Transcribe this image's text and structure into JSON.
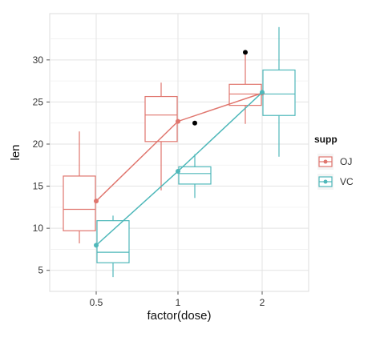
{
  "chart_data": {
    "type": "boxplot",
    "xlabel": "factor(dose)",
    "ylabel": "len",
    "categories": [
      "0.5",
      "1",
      "2"
    ],
    "ylim": [
      2.5,
      35.5
    ],
    "yticks": [
      5,
      10,
      15,
      20,
      25,
      30
    ],
    "grid": true,
    "legend": {
      "title": "supp",
      "placement": "right",
      "entries": [
        "OJ",
        "VC"
      ]
    },
    "series": [
      {
        "name": "OJ",
        "color": "#E0766E",
        "boxes": [
          {
            "category": "0.5",
            "min": 8.2,
            "q1": 9.7,
            "median": 12.25,
            "q3": 16.2,
            "max": 21.5,
            "outliers": []
          },
          {
            "category": "1",
            "min": 14.5,
            "q1": 20.3,
            "median": 23.45,
            "q3": 25.65,
            "max": 27.3,
            "outliers": []
          },
          {
            "category": "2",
            "min": 22.4,
            "q1": 24.6,
            "median": 25.95,
            "q3": 27.1,
            "max": 30.9,
            "outliers": []
          }
        ],
        "means": [
          13.23,
          22.7,
          26.06
        ]
      },
      {
        "name": "VC",
        "color": "#4FB8BA",
        "boxes": [
          {
            "category": "0.5",
            "min": 4.2,
            "q1": 5.9,
            "median": 7.15,
            "q3": 10.9,
            "max": 11.5,
            "outliers": []
          },
          {
            "category": "1",
            "min": 13.6,
            "q1": 15.25,
            "median": 16.5,
            "q3": 17.3,
            "max": 18.8,
            "outliers": []
          },
          {
            "category": "2",
            "min": 18.5,
            "q1": 23.4,
            "median": 25.95,
            "q3": 28.8,
            "max": 33.9,
            "outliers": []
          }
        ],
        "means": [
          7.98,
          16.77,
          26.14
        ]
      }
    ],
    "extra_points": [
      {
        "x": "1",
        "offset": "right",
        "y": 22.5,
        "color": "#000000"
      },
      {
        "x": "2",
        "offset": "left",
        "y": 30.9,
        "color": "#000000"
      }
    ]
  }
}
